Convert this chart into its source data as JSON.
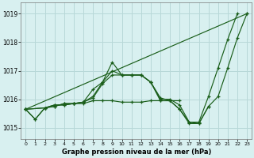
{
  "title": "Graphe pression niveau de la mer (hPa)",
  "bg_color": "#d8f0f0",
  "grid_color": "#b8d8d8",
  "line_color": "#1a5e1a",
  "xlim": [
    -0.5,
    23.5
  ],
  "ylim": [
    1014.6,
    1019.4
  ],
  "yticks": [
    1015,
    1016,
    1017,
    1018,
    1019
  ],
  "xticks": [
    0,
    1,
    2,
    3,
    4,
    5,
    6,
    7,
    8,
    9,
    10,
    11,
    12,
    13,
    14,
    15,
    16,
    17,
    18,
    19,
    20,
    21,
    22,
    23
  ],
  "series": [
    {
      "x": [
        0,
        1,
        2,
        3,
        4,
        5,
        6,
        7,
        8,
        9,
        10,
        11,
        12,
        13,
        14,
        15,
        16,
        17,
        18,
        19,
        20,
        21,
        22
      ],
      "y": [
        1015.65,
        1015.3,
        1015.7,
        1015.8,
        1015.8,
        1015.85,
        1015.9,
        1016.35,
        1016.6,
        1017.3,
        1016.85,
        1016.85,
        1016.85,
        1016.6,
        1016.0,
        1016.0,
        1015.8,
        1015.2,
        1015.2,
        1016.1,
        1017.1,
        1018.1,
        1019.0
      ]
    },
    {
      "x": [
        0,
        1,
        2,
        3,
        4,
        5,
        6,
        7,
        8,
        9,
        10,
        11,
        12,
        13,
        14,
        15,
        16,
        17,
        18,
        19
      ],
      "y": [
        1015.65,
        1015.3,
        1015.7,
        1015.8,
        1015.8,
        1015.85,
        1015.85,
        1015.95,
        1015.95,
        1015.95,
        1015.9,
        1015.9,
        1015.9,
        1015.95,
        1015.95,
        1015.95,
        1015.65,
        1015.15,
        1015.15,
        1015.75
      ]
    },
    {
      "x": [
        0,
        2,
        3,
        4,
        5,
        6,
        7,
        8,
        9,
        10,
        11,
        12,
        13,
        14,
        15,
        16
      ],
      "y": [
        1015.65,
        1015.7,
        1015.75,
        1015.85,
        1015.85,
        1015.9,
        1016.05,
        1016.55,
        1016.85,
        1016.85,
        1016.85,
        1016.85,
        1016.6,
        1015.95,
        1015.95,
        1015.95
      ]
    },
    {
      "x": [
        0,
        2,
        3,
        4,
        5,
        6,
        7,
        8,
        9,
        10,
        11,
        12,
        13,
        14,
        15,
        16,
        17,
        18,
        19,
        20,
        21,
        22,
        23
      ],
      "y": [
        1015.65,
        1015.7,
        1015.75,
        1015.85,
        1015.85,
        1015.9,
        1016.1,
        1016.6,
        1017.0,
        1016.85,
        1016.85,
        1016.85,
        1016.6,
        1016.05,
        1015.95,
        1015.65,
        1015.2,
        1015.15,
        1015.75,
        1016.1,
        1017.1,
        1018.15,
        1019.0
      ]
    },
    {
      "x": [
        0,
        23
      ],
      "y": [
        1015.65,
        1019.0
      ]
    }
  ]
}
